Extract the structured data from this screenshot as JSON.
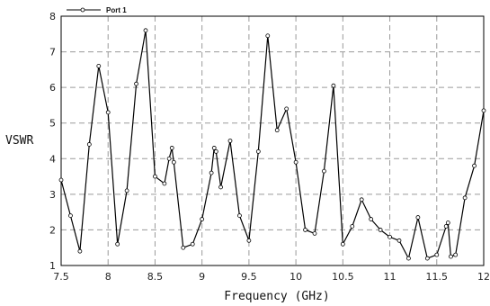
{
  "chart_data": {
    "type": "line",
    "title": "",
    "xlabel": "Frequency (GHz)",
    "ylabel": "VSWR",
    "xlim": [
      7.5,
      12
    ],
    "ylim": [
      1,
      8
    ],
    "xticks": [
      "7.5",
      "8",
      "8.5",
      "9",
      "9.5",
      "10",
      "10.5",
      "11",
      "11.5",
      "12"
    ],
    "yticks": [
      "1",
      "2",
      "3",
      "4",
      "5",
      "6",
      "7",
      "8"
    ],
    "grid": "dashed",
    "legend": "top-left",
    "series": [
      {
        "name": "Port 1",
        "color": "#000000",
        "x": [
          7.5,
          7.6,
          7.7,
          7.8,
          7.9,
          8.0,
          8.1,
          8.2,
          8.3,
          8.4,
          8.5,
          8.6,
          8.65,
          8.68,
          8.7,
          8.8,
          8.9,
          9.0,
          9.1,
          9.13,
          9.15,
          9.2,
          9.3,
          9.4,
          9.5,
          9.6,
          9.7,
          9.8,
          9.9,
          10.0,
          10.1,
          10.2,
          10.3,
          10.4,
          10.5,
          10.6,
          10.7,
          10.8,
          10.9,
          11.0,
          11.1,
          11.2,
          11.3,
          11.4,
          11.5,
          11.6,
          11.62,
          11.65,
          11.7,
          11.8,
          11.9,
          12.0
        ],
        "y": [
          3.4,
          2.4,
          1.4,
          4.4,
          6.6,
          5.3,
          1.6,
          3.1,
          6.1,
          7.6,
          3.5,
          3.3,
          4.0,
          4.3,
          3.9,
          1.5,
          1.6,
          2.3,
          3.6,
          4.3,
          4.2,
          3.2,
          4.5,
          2.4,
          1.7,
          4.2,
          7.45,
          4.8,
          5.4,
          3.9,
          2.0,
          1.9,
          3.65,
          6.05,
          1.6,
          2.1,
          2.85,
          2.3,
          2.0,
          1.8,
          1.7,
          1.2,
          2.35,
          1.2,
          1.3,
          2.1,
          2.2,
          1.25,
          1.3,
          2.9,
          3.8,
          5.35
        ]
      }
    ]
  }
}
